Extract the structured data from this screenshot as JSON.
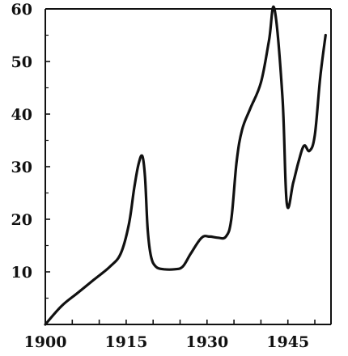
{
  "chart_data": {
    "type": "line",
    "title": "",
    "xlabel": "",
    "ylabel": "",
    "xlim": [
      1900,
      1953
    ],
    "ylim": [
      0,
      60
    ],
    "grid": false,
    "line_color": "#111111",
    "x_ticks": [
      {
        "value": 1900,
        "label": "1900"
      },
      {
        "value": 1915,
        "label": "1915"
      },
      {
        "value": 1930,
        "label": "1930"
      },
      {
        "value": 1945,
        "label": "1945"
      }
    ],
    "y_ticks": [
      {
        "value": 10,
        "label": "10"
      },
      {
        "value": 20,
        "label": "20"
      },
      {
        "value": 30,
        "label": "30"
      },
      {
        "value": 40,
        "label": "40"
      },
      {
        "value": 50,
        "label": "50"
      },
      {
        "value": 60,
        "label": "60"
      }
    ],
    "series": [
      {
        "x": [
          1900,
          1903,
          1906,
          1909,
          1912,
          1914,
          1915.5,
          1916.5,
          1917.3,
          1918,
          1918.5,
          1919,
          1919.6,
          1920.5,
          1922,
          1924,
          1925.5,
          1927,
          1929,
          1930.5,
          1932,
          1933.5,
          1934.5,
          1935.5,
          1936.5,
          1938,
          1940,
          1941.5,
          1942.5,
          1944,
          1944.8,
          1946,
          1947,
          1948,
          1949,
          1950,
          1951,
          1952
        ],
        "y": [
          0,
          3.5,
          6,
          8.5,
          11,
          13.5,
          19,
          26,
          30.5,
          32,
          28,
          18,
          13,
          11,
          10.5,
          10.5,
          11,
          13.5,
          16.5,
          16.7,
          16.5,
          16.7,
          20,
          31,
          37,
          41,
          46,
          54,
          60,
          43,
          23,
          27,
          31,
          34,
          33,
          36,
          47,
          55
        ]
      }
    ]
  }
}
